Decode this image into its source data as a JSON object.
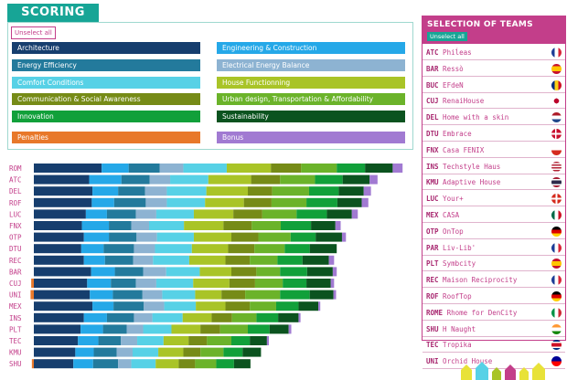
{
  "scoring": {
    "title": "SCORING",
    "unselect_label": "Unselect all",
    "categories": [
      {
        "label": "Architecture",
        "color": "#163e6e"
      },
      {
        "label": "Engineering & Construction",
        "color": "#25a8e8"
      },
      {
        "label": "Energy Efficiency",
        "color": "#237a9c"
      },
      {
        "label": "Electrical Energy Balance",
        "color": "#8db3d2"
      },
      {
        "label": "Comfort Conditions",
        "color": "#57d1e6"
      },
      {
        "label": "House Functionning",
        "color": "#a9c427"
      },
      {
        "label": "Communication & Social Awareness",
        "color": "#768b17"
      },
      {
        "label": "Urban design, Transportation & Affordability",
        "color": "#6bb32a"
      },
      {
        "label": "Innovation",
        "color": "#11a03a"
      },
      {
        "label": "Sustainability",
        "color": "#0b531f"
      },
      {
        "label": "Penalties",
        "color": "#e8782a"
      },
      {
        "label": "Bonus",
        "color": "#a17ad2"
      }
    ]
  },
  "chart_data": {
    "type": "bar",
    "stacked": true,
    "orientation": "horizontal",
    "categories": [
      "ROM",
      "ATC",
      "DEL",
      "ROF",
      "LUC",
      "FNX",
      "OTP",
      "DTU",
      "REC",
      "BAR",
      "CUJ",
      "UNI",
      "MEX",
      "INS",
      "PLT",
      "TEC",
      "KMU",
      "SHU"
    ],
    "series_order": [
      "Architecture",
      "Engineering & Construction",
      "Energy Efficiency",
      "Electrical Energy Balance",
      "Comfort Conditions",
      "House Functionning",
      "Communication & Social Awareness",
      "Urban design, Transportation & Affordability",
      "Innovation",
      "Sustainability",
      "Penalties",
      "Bonus"
    ],
    "series": [
      {
        "name": "Architecture",
        "values": [
          103,
          84,
          89,
          88,
          79,
          73,
          76,
          72,
          76,
          87,
          81,
          85,
          89,
          76,
          71,
          67,
          63,
          60
        ]
      },
      {
        "name": "Engineering & Construction",
        "values": [
          41,
          49,
          39,
          34,
          32,
          41,
          38,
          34,
          32,
          36,
          36,
          35,
          32,
          35,
          34,
          31,
          28,
          30
        ]
      },
      {
        "name": "Energy Efficiency",
        "values": [
          47,
          43,
          41,
          48,
          44,
          34,
          42,
          46,
          43,
          43,
          38,
          45,
          46,
          41,
          36,
          34,
          35,
          38
        ]
      },
      {
        "name": "Electrical Energy Balance",
        "values": [
          36,
          31,
          33,
          32,
          31,
          27,
          31,
          32,
          30,
          35,
          31,
          30,
          31,
          28,
          25,
          25,
          24,
          20
        ]
      },
      {
        "name": "Comfort Conditions",
        "values": [
          66,
          58,
          60,
          58,
          57,
          53,
          56,
          56,
          55,
          51,
          56,
          50,
          48,
          46,
          43,
          40,
          39,
          37
        ]
      },
      {
        "name": "House Functionning",
        "values": [
          67,
          65,
          63,
          59,
          60,
          60,
          57,
          55,
          55,
          48,
          55,
          40,
          45,
          44,
          44,
          38,
          38,
          35
        ]
      },
      {
        "name": "Communication & Social Awareness",
        "values": [
          46,
          44,
          37,
          42,
          44,
          43,
          41,
          40,
          37,
          38,
          39,
          36,
          37,
          31,
          30,
          28,
          26,
          25
        ]
      },
      {
        "name": "Urban design, Transportation & Affordability",
        "values": [
          54,
          53,
          56,
          53,
          52,
          44,
          49,
          46,
          42,
          36,
          42,
          53,
          40,
          37,
          42,
          37,
          35,
          32
        ]
      },
      {
        "name": "Innovation",
        "values": [
          43,
          42,
          45,
          47,
          46,
          46,
          38,
          38,
          38,
          41,
          36,
          45,
          34,
          33,
          33,
          28,
          29,
          27
        ]
      },
      {
        "name": "Sustainability",
        "values": [
          42,
          41,
          38,
          37,
          38,
          37,
          40,
          41,
          40,
          39,
          37,
          36,
          30,
          31,
          29,
          26,
          28,
          25
        ]
      },
      {
        "name": "Penalties",
        "values": [
          0,
          0,
          0,
          0,
          0,
          0,
          0,
          0,
          0,
          0,
          -4,
          -5,
          0,
          0,
          0,
          0,
          0,
          -3
        ]
      },
      {
        "name": "Bonus",
        "values": [
          15,
          12,
          11,
          10,
          9,
          8,
          6,
          0,
          8,
          6,
          5,
          4,
          3,
          3,
          4,
          3,
          0,
          0
        ]
      }
    ],
    "xlim": [
      -10,
      600
    ],
    "grid": false,
    "legend": "top"
  },
  "teams": {
    "title": "SELECTION OF TEAMS",
    "unselect_label": "Unselect all",
    "items": [
      {
        "code": "ATC",
        "name": "Phiĺeas",
        "flag": "france"
      },
      {
        "code": "BAR",
        "name": "Ressò",
        "flag": "spain"
      },
      {
        "code": "BUC",
        "name": "EFdeN",
        "flag": "romania"
      },
      {
        "code": "CUJ",
        "name": "RenaiHouse",
        "flag": "japan"
      },
      {
        "code": "DEL",
        "name": "Home with a skin",
        "flag": "netherlands"
      },
      {
        "code": "DTU",
        "name": "Embrace",
        "flag": "denmark"
      },
      {
        "code": "FNX",
        "name": "Casa FENIX",
        "flag": "chile"
      },
      {
        "code": "INS",
        "name": "Techstyle Haus",
        "flag": "usa"
      },
      {
        "code": "KMU",
        "name": "Adaptive House",
        "flag": "thailand"
      },
      {
        "code": "LUC",
        "name": "Your+",
        "flag": "switzerland"
      },
      {
        "code": "MEX",
        "name": "CASA",
        "flag": "mexico"
      },
      {
        "code": "OTP",
        "name": "OnTop",
        "flag": "germany"
      },
      {
        "code": "PAR",
        "name": "Liv-Lib'",
        "flag": "france"
      },
      {
        "code": "PLT",
        "name": "Symbcity",
        "flag": "spain"
      },
      {
        "code": "REC",
        "name": "Maison Reciprocity",
        "flag": "france"
      },
      {
        "code": "ROF",
        "name": "RoofTop",
        "flag": "germany"
      },
      {
        "code": "ROME",
        "name": "Rhome for DenCity",
        "flag": "italy"
      },
      {
        "code": "SHU",
        "name": "H Naught",
        "flag": "india"
      },
      {
        "code": "TEC",
        "name": "Tropika",
        "flag": "costa-rica"
      },
      {
        "code": "UNI",
        "name": "Orchid House",
        "flag": "taiwan"
      }
    ]
  }
}
